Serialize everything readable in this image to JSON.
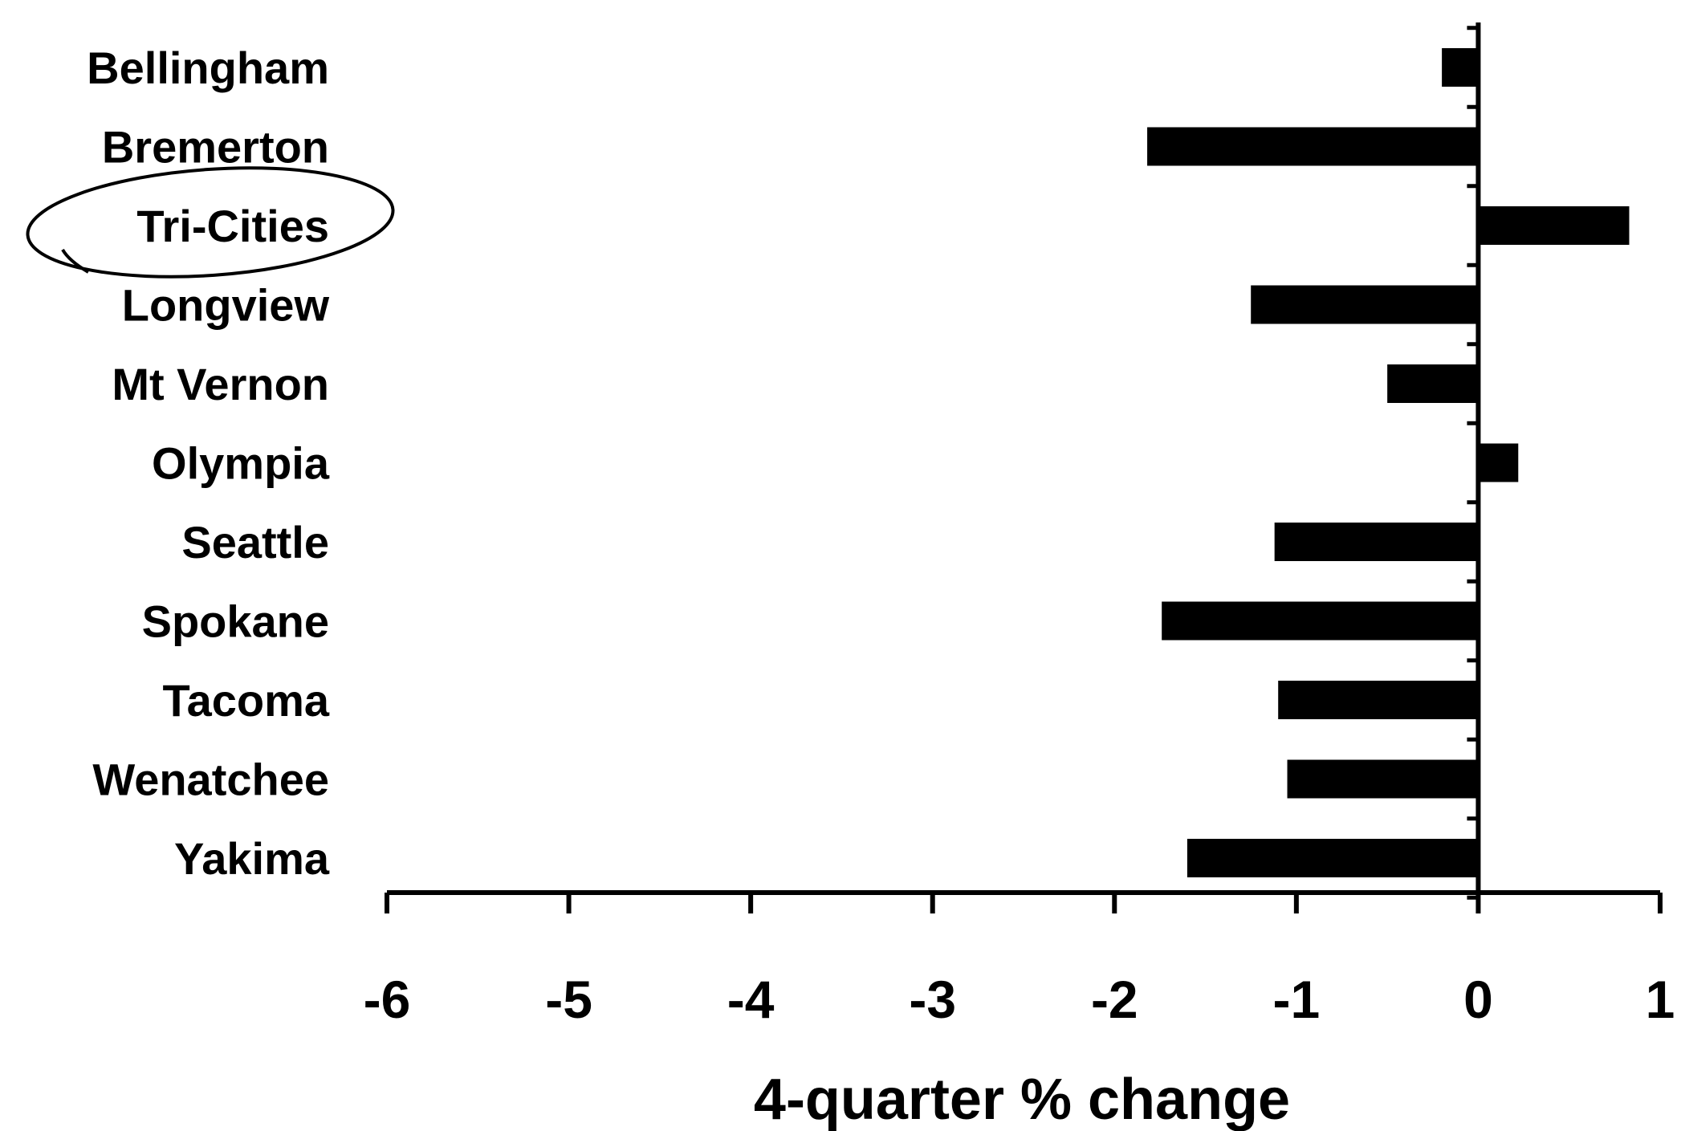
{
  "chart_data": {
    "type": "bar",
    "orientation": "horizontal",
    "categories": [
      "Bellingham",
      "Bremerton",
      "Tri-Cities",
      "Longview",
      "Mt Vernon",
      "Olympia",
      "Seattle",
      "Spokane",
      "Tacoma",
      "Wenatchee",
      "Yakima"
    ],
    "values": [
      -0.2,
      -1.82,
      0.83,
      -1.25,
      -0.5,
      0.22,
      -1.12,
      -1.74,
      -1.1,
      -1.05,
      -1.6
    ],
    "xlabel": "4-quarter % change",
    "ylabel": "",
    "title": "",
    "xlim": [
      -6,
      1
    ],
    "xticks": [
      "-6",
      "-5",
      "-4",
      "-3",
      "-2",
      "-1",
      "0",
      "1"
    ],
    "grid": false,
    "legend": "none",
    "bar_color": "#000000",
    "annotation": {
      "type": "hand-drawn-circle",
      "target": "Tri-Cities"
    }
  }
}
